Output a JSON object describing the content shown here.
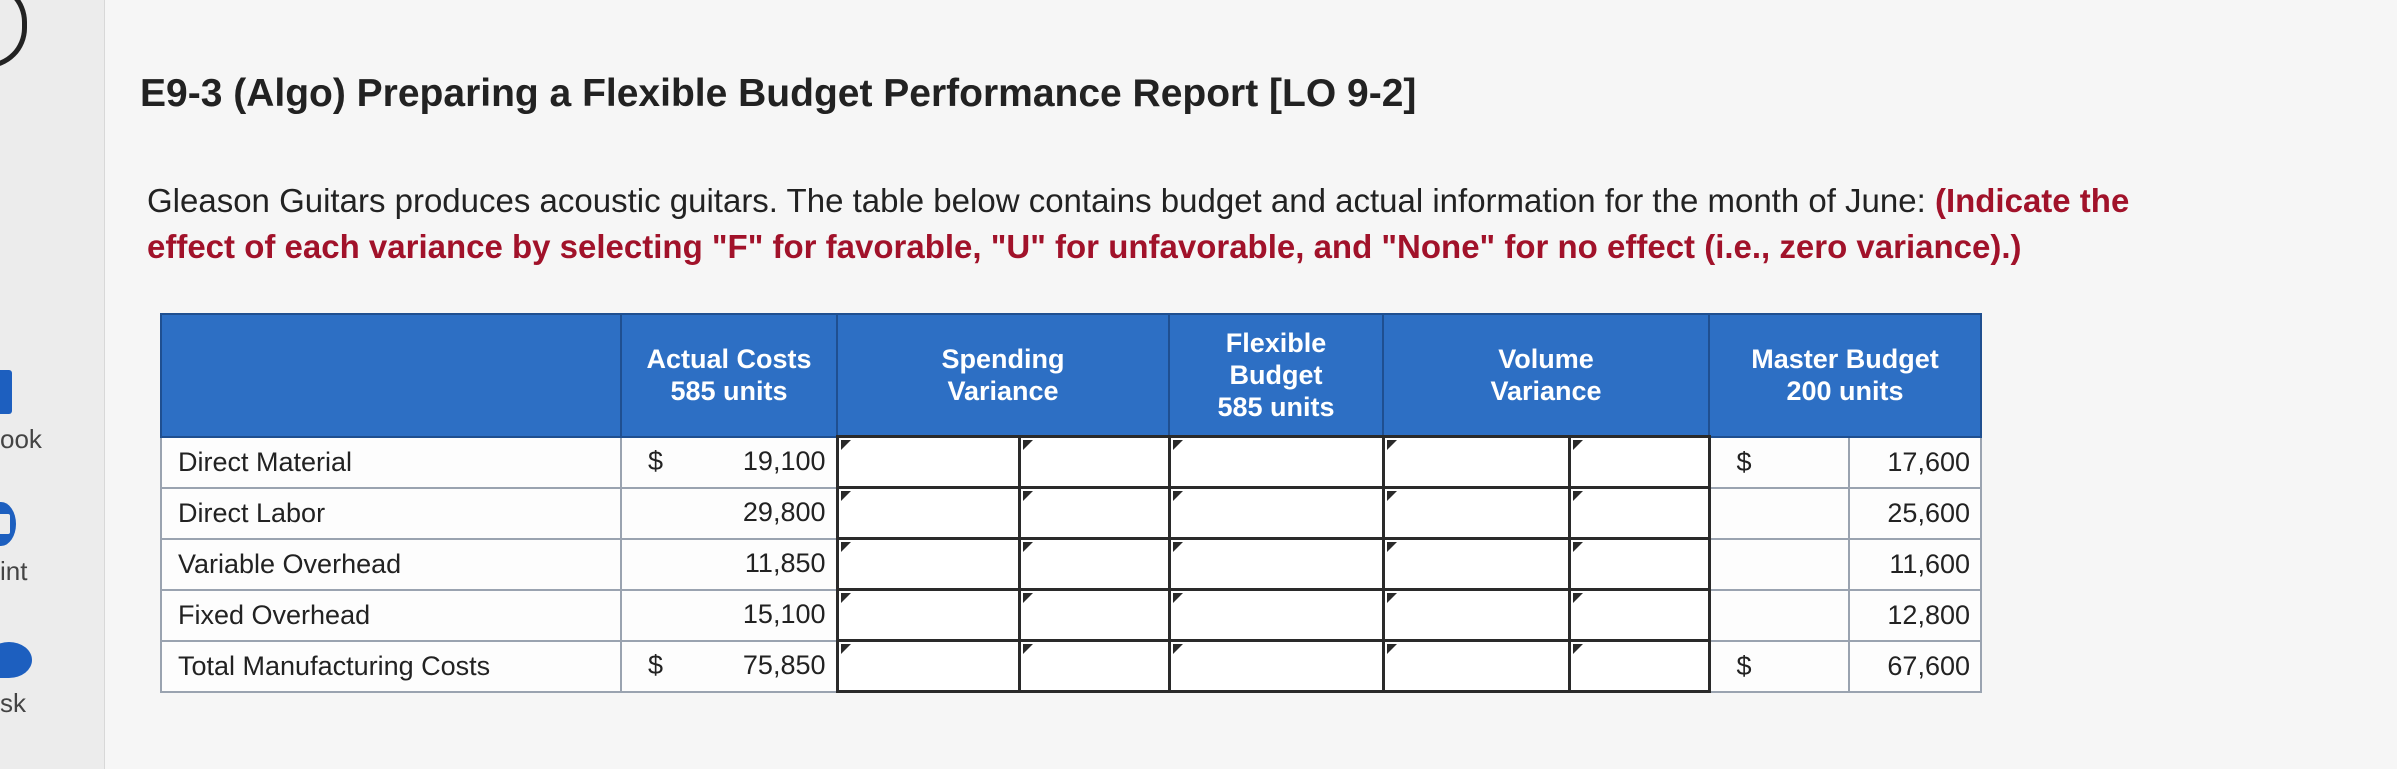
{
  "sidebar": {
    "items": [
      {
        "label": "ook",
        "icon": "book-icon"
      },
      {
        "label": "int",
        "icon": "print-icon"
      },
      {
        "label": "sk",
        "icon": "ask-icon"
      }
    ]
  },
  "title": "E9-3 (Algo) Preparing a Flexible Budget Performance Report [LO 9-2]",
  "intro": {
    "text": "Gleason Guitars produces acoustic guitars. The table below contains budget and actual information for the month of June: ",
    "highlight": "(Indicate the effect of each variance by selecting \"F\" for favorable, \"U\" for unfavorable, and \"None\" for no effect (i.e., zero variance).)"
  },
  "table": {
    "headers": {
      "actual_costs": "Actual Costs\n585 units",
      "spending_variance": "Spending\nVariance",
      "flexible_budget": "Flexible\nBudget\n585 units",
      "volume_variance": "Volume\nVariance",
      "master_budget": "Master Budget\n200 units"
    },
    "rows": [
      {
        "label": "Direct Material",
        "actual_symbol": "$",
        "actual": "19,100",
        "master_symbol": "$",
        "master": "17,600"
      },
      {
        "label": "Direct Labor",
        "actual_symbol": "",
        "actual": "29,800",
        "master_symbol": "",
        "master": "25,600"
      },
      {
        "label": "Variable Overhead",
        "actual_symbol": "",
        "actual": "11,850",
        "master_symbol": "",
        "master": "11,600"
      },
      {
        "label": "Fixed Overhead",
        "actual_symbol": "",
        "actual": "15,100",
        "master_symbol": "",
        "master": "12,800"
      },
      {
        "label": "Total Manufacturing Costs",
        "actual_symbol": "$",
        "actual": "75,850",
        "master_symbol": "$",
        "master": "67,600"
      }
    ]
  }
}
